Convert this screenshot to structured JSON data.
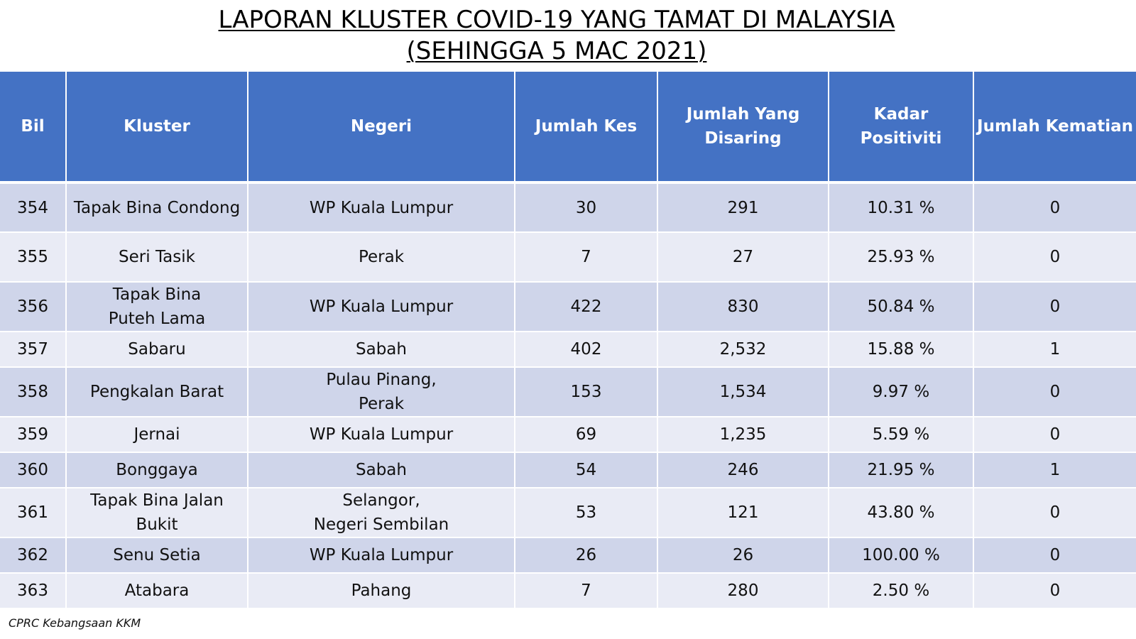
{
  "title": {
    "line1": "LAPORAN KLUSTER COVID-19 YANG TAMAT DI MALAYSIA",
    "line2": "(SEHINGGA  5 MAC 2021)"
  },
  "table": {
    "headers": [
      "Bil",
      "Kluster",
      "Negeri",
      "Jumlah Kes",
      "Jumlah Yang\nDisaring",
      "Kadar Positiviti",
      "Jumlah Kematian"
    ],
    "rows": [
      [
        "354",
        "Tapak Bina Condong",
        "WP Kuala Lumpur",
        "30",
        "291",
        "10.31 %",
        "0"
      ],
      [
        "355",
        "Seri Tasik",
        "Perak",
        "7",
        "27",
        "25.93 %",
        "0"
      ],
      [
        "356",
        "Tapak Bina\nPuteh Lama",
        "WP Kuala Lumpur",
        "422",
        "830",
        "50.84 %",
        "0"
      ],
      [
        "357",
        "Sabaru",
        "Sabah",
        "402",
        "2,532",
        "15.88 %",
        "1"
      ],
      [
        "358",
        "Pengkalan Barat",
        "Pulau Pinang,\nPerak",
        "153",
        "1,534",
        "9.97 %",
        "0"
      ],
      [
        "359",
        "Jernai",
        "WP Kuala Lumpur",
        "69",
        "1,235",
        "5.59 %",
        "0"
      ],
      [
        "360",
        "Bonggaya",
        "Sabah",
        "54",
        "246",
        "21.95 %",
        "1"
      ],
      [
        "361",
        "Tapak Bina Jalan Bukit",
        "Selangor,\nNegeri Sembilan",
        "53",
        "121",
        "43.80 %",
        "0"
      ],
      [
        "362",
        "Senu Setia",
        "WP Kuala Lumpur",
        "26",
        "26",
        "100.00 %",
        "0"
      ],
      [
        "363",
        "Atabara",
        "Pahang",
        "7",
        "280",
        "2.50 %",
        "0"
      ]
    ]
  },
  "source": "CPRC Kebangsaan KKM",
  "colors": {
    "header_bg": "#4472c4",
    "row_dark": "#cfd5ea",
    "row_light": "#e9ebf5"
  }
}
